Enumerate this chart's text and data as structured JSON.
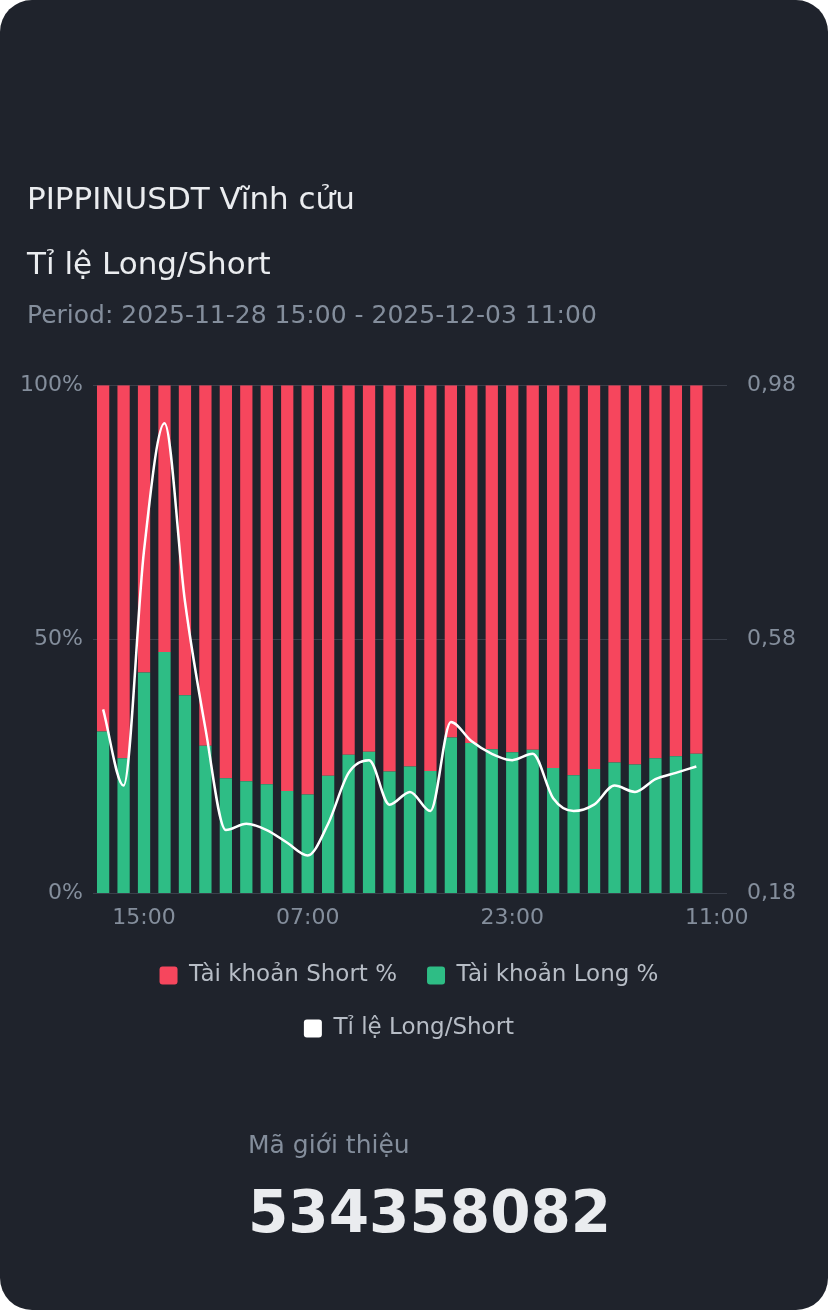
{
  "chart_data": {
    "type": "bar",
    "title": "PIPPINUSDT Vĩnh cửu",
    "subtitle": "Tỉ lệ Long/Short",
    "annotations": [
      "Period: 2025-11-28 15:00 - 2025-12-03 11:00",
      "Mã giới thiệu",
      "534358082"
    ],
    "categories": [
      null,
      null,
      "15:00",
      null,
      null,
      null,
      null,
      null,
      null,
      null,
      "07:00",
      null,
      null,
      null,
      null,
      null,
      null,
      null,
      null,
      null,
      "23:00",
      null,
      null,
      null,
      null,
      null,
      null,
      null,
      null,
      null,
      "11:00"
    ],
    "stacked": true,
    "series": [
      {
        "name": "Tài khoản Long %",
        "color": "#2ebd85",
        "values": [
          31.9,
          26.6,
          43.5,
          47.5,
          39,
          29.1,
          22.7,
          22.1,
          21.5,
          20.2,
          19.5,
          23.2,
          27.3,
          27.9,
          24,
          25,
          24.1,
          30.7,
          29.6,
          28.4,
          27.8,
          28.3,
          24.7,
          23.3,
          24.5,
          25.8,
          25.4,
          26.6,
          27,
          27.5,
          null
        ]
      },
      {
        "name": "Tài khoản Short %",
        "color": "#f6465d",
        "values": [
          68.1,
          73.4,
          56.5,
          52.5,
          61,
          70.9,
          77.3,
          77.9,
          78.5,
          79.8,
          80.5,
          76.8,
          72.7,
          72.1,
          76,
          75,
          75.9,
          69.3,
          70.4,
          71.6,
          72.2,
          71.7,
          75.3,
          76.7,
          75.5,
          74.2,
          74.6,
          73.4,
          73,
          72.5,
          null
        ]
      },
      {
        "name": "Tỉ lệ Long/Short",
        "type": "line",
        "axis": "y2",
        "color": "#ffffff",
        "values": [
          0.47,
          0.35,
          0.72,
          0.92,
          0.64,
          0.44,
          0.28,
          0.29,
          0.28,
          0.26,
          0.24,
          0.29,
          0.37,
          0.39,
          0.32,
          0.34,
          0.31,
          0.45,
          0.42,
          0.4,
          0.39,
          0.4,
          0.33,
          0.31,
          0.32,
          0.35,
          0.34,
          0.36,
          0.37,
          0.38,
          null
        ]
      }
    ],
    "ylim": [
      0,
      100
    ],
    "yticks": [
      {
        "value": 0,
        "label": "0%"
      },
      {
        "value": 50,
        "label": "50%"
      },
      {
        "value": 100,
        "label": "100%"
      }
    ],
    "y2lim": [
      0.18,
      0.98
    ],
    "y2ticks": [
      {
        "value": 0.18,
        "label": "0,18"
      },
      {
        "value": 0.58,
        "label": "0,58"
      },
      {
        "value": 0.98,
        "label": "0,98"
      }
    ],
    "grid": "y",
    "legend": "bottom",
    "marker": "none",
    "line_style": "solid"
  }
}
